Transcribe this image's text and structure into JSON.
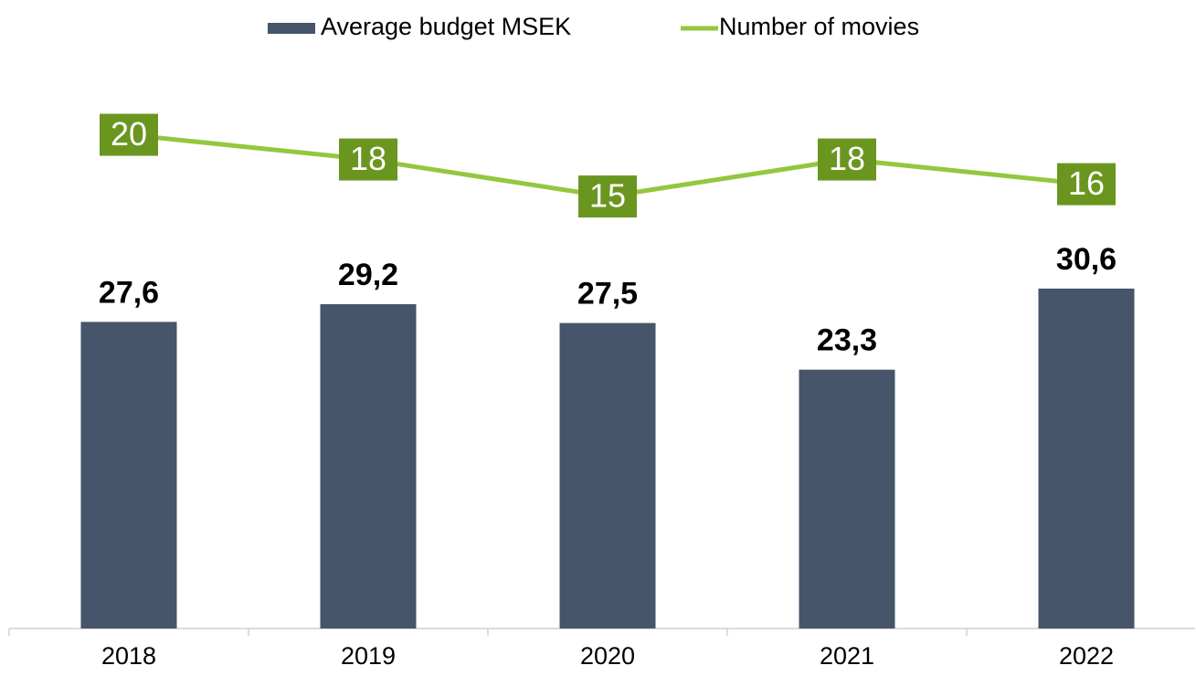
{
  "chart_data": {
    "type": "bar",
    "categories": [
      "2018",
      "2019",
      "2020",
      "2021",
      "2022"
    ],
    "series": [
      {
        "name": "Average budget MSEK",
        "type": "bar",
        "color": "#465569",
        "values": [
          27.6,
          29.2,
          27.5,
          23.3,
          30.6
        ],
        "value_labels": [
          "27,6",
          "29,2",
          "27,5",
          "23,3",
          "30,6"
        ]
      },
      {
        "name": "Number of movies",
        "type": "line",
        "axis": "y2",
        "color": "#92c83e",
        "label_color": "#6a961f",
        "values": [
          20,
          18,
          15,
          18,
          16
        ]
      }
    ],
    "ylim": [
      0,
      50
    ],
    "y2lim": [
      -20,
      25
    ],
    "legend": "top"
  }
}
